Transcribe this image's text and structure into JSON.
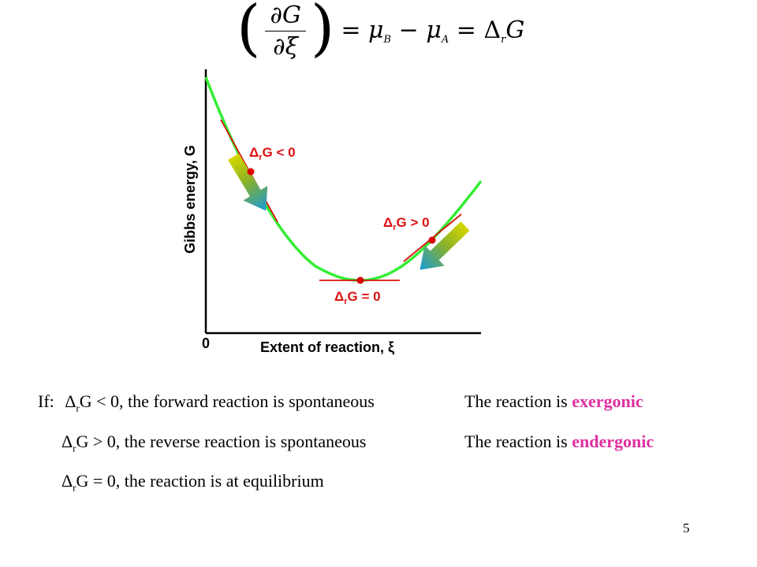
{
  "equation": {
    "numerator": "∂G",
    "denominator": "∂ξ",
    "eq1": "=",
    "mu": "μ",
    "sub_b": "B",
    "minus": "−",
    "sub_a": "A",
    "eq2": "=",
    "delta": "Δ",
    "sub_r": "r",
    "g": "G"
  },
  "diagram": {
    "y_axis_label": "Gibbs energy, G",
    "x_axis_label": "Extent of reaction, ξ",
    "origin_label": "0",
    "label_negative": {
      "delta": "Δ",
      "sub": "r",
      "rest": "G < 0"
    },
    "label_positive": {
      "delta": "Δ",
      "sub": "r",
      "rest": "G > 0"
    },
    "label_zero": {
      "delta": "Δ",
      "sub": "r",
      "rest": "G = 0"
    },
    "colors": {
      "curve": "#33ee33",
      "tangent": "#dd1111",
      "point": "#dd0000",
      "arrow_start": "#d6d600",
      "arrow_end": "#1a9ad6"
    }
  },
  "statements": {
    "if_label": "If:",
    "line1": {
      "delta": "Δ",
      "sub": "r",
      "text": "G < 0, the forward reaction is spontaneous"
    },
    "line2": {
      "delta": "Δ",
      "sub": "r",
      "text": "G > 0, the reverse reaction is spontaneous"
    },
    "line3": {
      "delta": "Δ",
      "sub": "r",
      "text": "G = 0, the reaction is at equilibrium"
    },
    "exergonic": {
      "prefix": "The reaction is ",
      "highlight": "exergonic"
    },
    "endergonic": {
      "prefix": "The reaction is ",
      "highlight": "endergonic"
    },
    "highlight_color": "#e02fa0"
  },
  "page_number": "5"
}
